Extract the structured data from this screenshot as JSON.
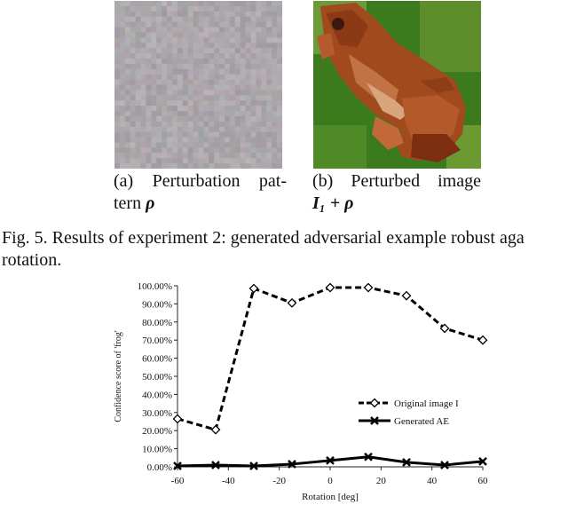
{
  "figure": {
    "subfig_a": {
      "caption_line1": [
        "(a)",
        "Perturbation",
        "pat-"
      ],
      "caption_line2_text": "tern",
      "caption_line2_math": "ρ"
    },
    "subfig_b": {
      "caption_line1": [
        "(b)",
        "Perturbed",
        "image"
      ],
      "caption_line2_math": "I₁ + ρ"
    },
    "caption_line1": "Fig. 5.  Results of experiment 2: generated adversarial example robust aga",
    "caption_line2": "rotation."
  },
  "chart_data": {
    "type": "line",
    "xlabel": "Rotation [deg]",
    "ylabel": "Confidence score of 'frog'",
    "xlim": [
      -60,
      60
    ],
    "ylim": [
      0,
      100
    ],
    "x_ticks": [
      "-60",
      "-40",
      "-20",
      "0",
      "20",
      "40",
      "60"
    ],
    "y_ticks": [
      "0.00%",
      "10.00%",
      "20.00%",
      "30.00%",
      "40.00%",
      "50.00%",
      "60.00%",
      "70.00%",
      "80.00%",
      "90.00%",
      "100.00%"
    ],
    "legend_position": "right",
    "grid": false,
    "x": [
      -60,
      -45,
      -30,
      -15,
      0,
      15,
      30,
      45,
      60
    ],
    "series": [
      {
        "name": "Original image I",
        "marker": "diamond",
        "dash": true,
        "values": [
          26.5,
          20.5,
          98.5,
          90.5,
          99,
          99,
          94.5,
          76.5,
          70
        ]
      },
      {
        "name": "Generated AE",
        "marker": "x",
        "dash": false,
        "values": [
          0.5,
          1,
          0.5,
          1.5,
          3.5,
          5.5,
          2.5,
          1,
          3
        ]
      }
    ]
  }
}
